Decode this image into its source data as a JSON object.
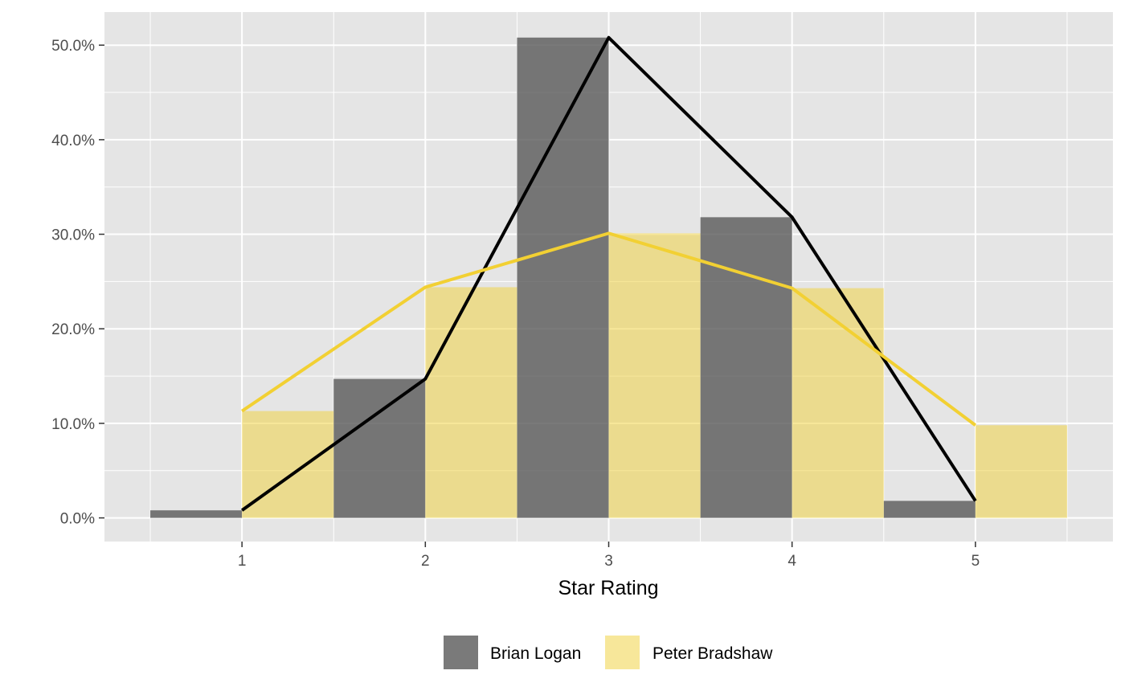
{
  "chart_data": {
    "type": "bar",
    "subtype": "dodged-bar-with-line-overlay",
    "title": "",
    "xlabel": "Star Rating",
    "ylabel": "",
    "x": [
      1,
      2,
      3,
      4,
      5
    ],
    "x_tick_labels": [
      "1",
      "2",
      "3",
      "4",
      "5"
    ],
    "y_tick_values": [
      0,
      10,
      20,
      30,
      40,
      50
    ],
    "y_tick_labels": [
      "0.0%",
      "10.0%",
      "20.0%",
      "30.0%",
      "40.0%",
      "50.0%"
    ],
    "xlim": [
      0.25,
      5.75
    ],
    "ylim": [
      -2.5,
      53.5
    ],
    "grid": true,
    "legend_position": "bottom",
    "series": [
      {
        "name": "Brian Logan",
        "bar_color": "#595959",
        "bar_opacity": 0.8,
        "line_color": "#000000",
        "values": [
          0.8,
          14.7,
          50.8,
          31.8,
          1.8
        ]
      },
      {
        "name": "Peter Bradshaw",
        "bar_color": "#f0d347",
        "bar_opacity": 0.55,
        "line_color": "#f2d033",
        "values": [
          11.3,
          24.4,
          30.1,
          24.3,
          9.8
        ]
      }
    ],
    "colors": {
      "panel_background": "#e5e5e5",
      "grid_line": "#ffffff",
      "tick_text": "#4d4d4d"
    }
  }
}
